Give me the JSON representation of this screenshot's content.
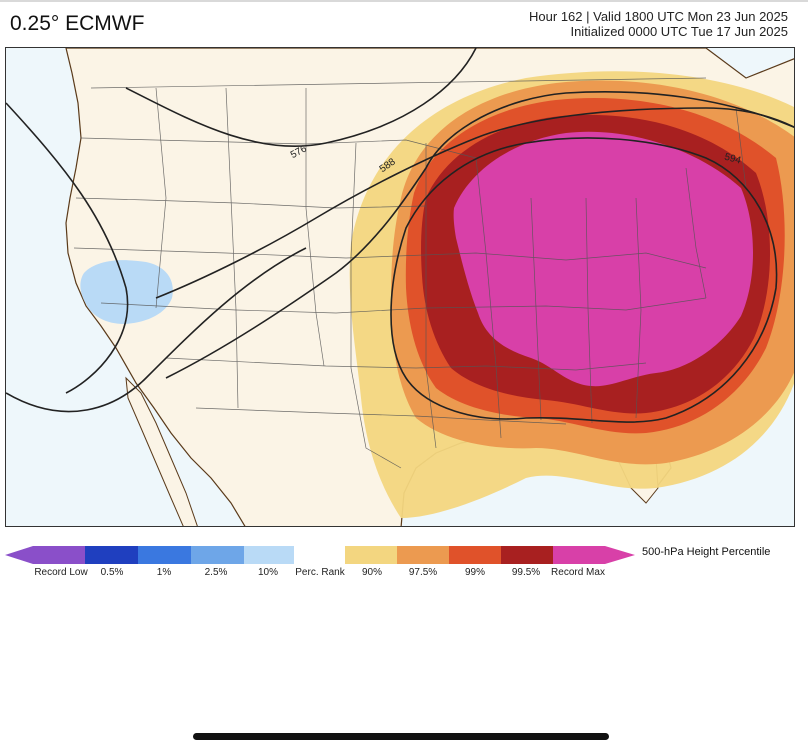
{
  "header": {
    "title": "0.25° ECMWF",
    "run_line_1": "Hour 162 | Valid 1800 UTC Mon 23 Jun 2025",
    "run_line_2": "Initialized 0000 UTC Tue 17 Jun 2025"
  },
  "map": {
    "contour_labels": [
      "576",
      "588",
      "594"
    ],
    "colors": {
      "ocean": "#eef7fb",
      "land": "#fbf4e6",
      "state_lines": "#555555",
      "coastline": "#5a3a1a",
      "contours": "#222222"
    }
  },
  "legend": {
    "title": "500-hPa Height Percentile",
    "labels": [
      "Record Low",
      "0.5%",
      "1%",
      "2.5%",
      "10%",
      "Perc. Rank",
      "90%",
      "97.5%",
      "99%",
      "99.5%",
      "Record Max"
    ],
    "colors": [
      "#8a4fc9",
      "#1f3fbf",
      "#3a78e0",
      "#6ea6e8",
      "#b9daf6",
      "#ffffff",
      "#f3d680",
      "#ec9a50",
      "#e0522a",
      "#a82020",
      "#d840a8"
    ]
  }
}
